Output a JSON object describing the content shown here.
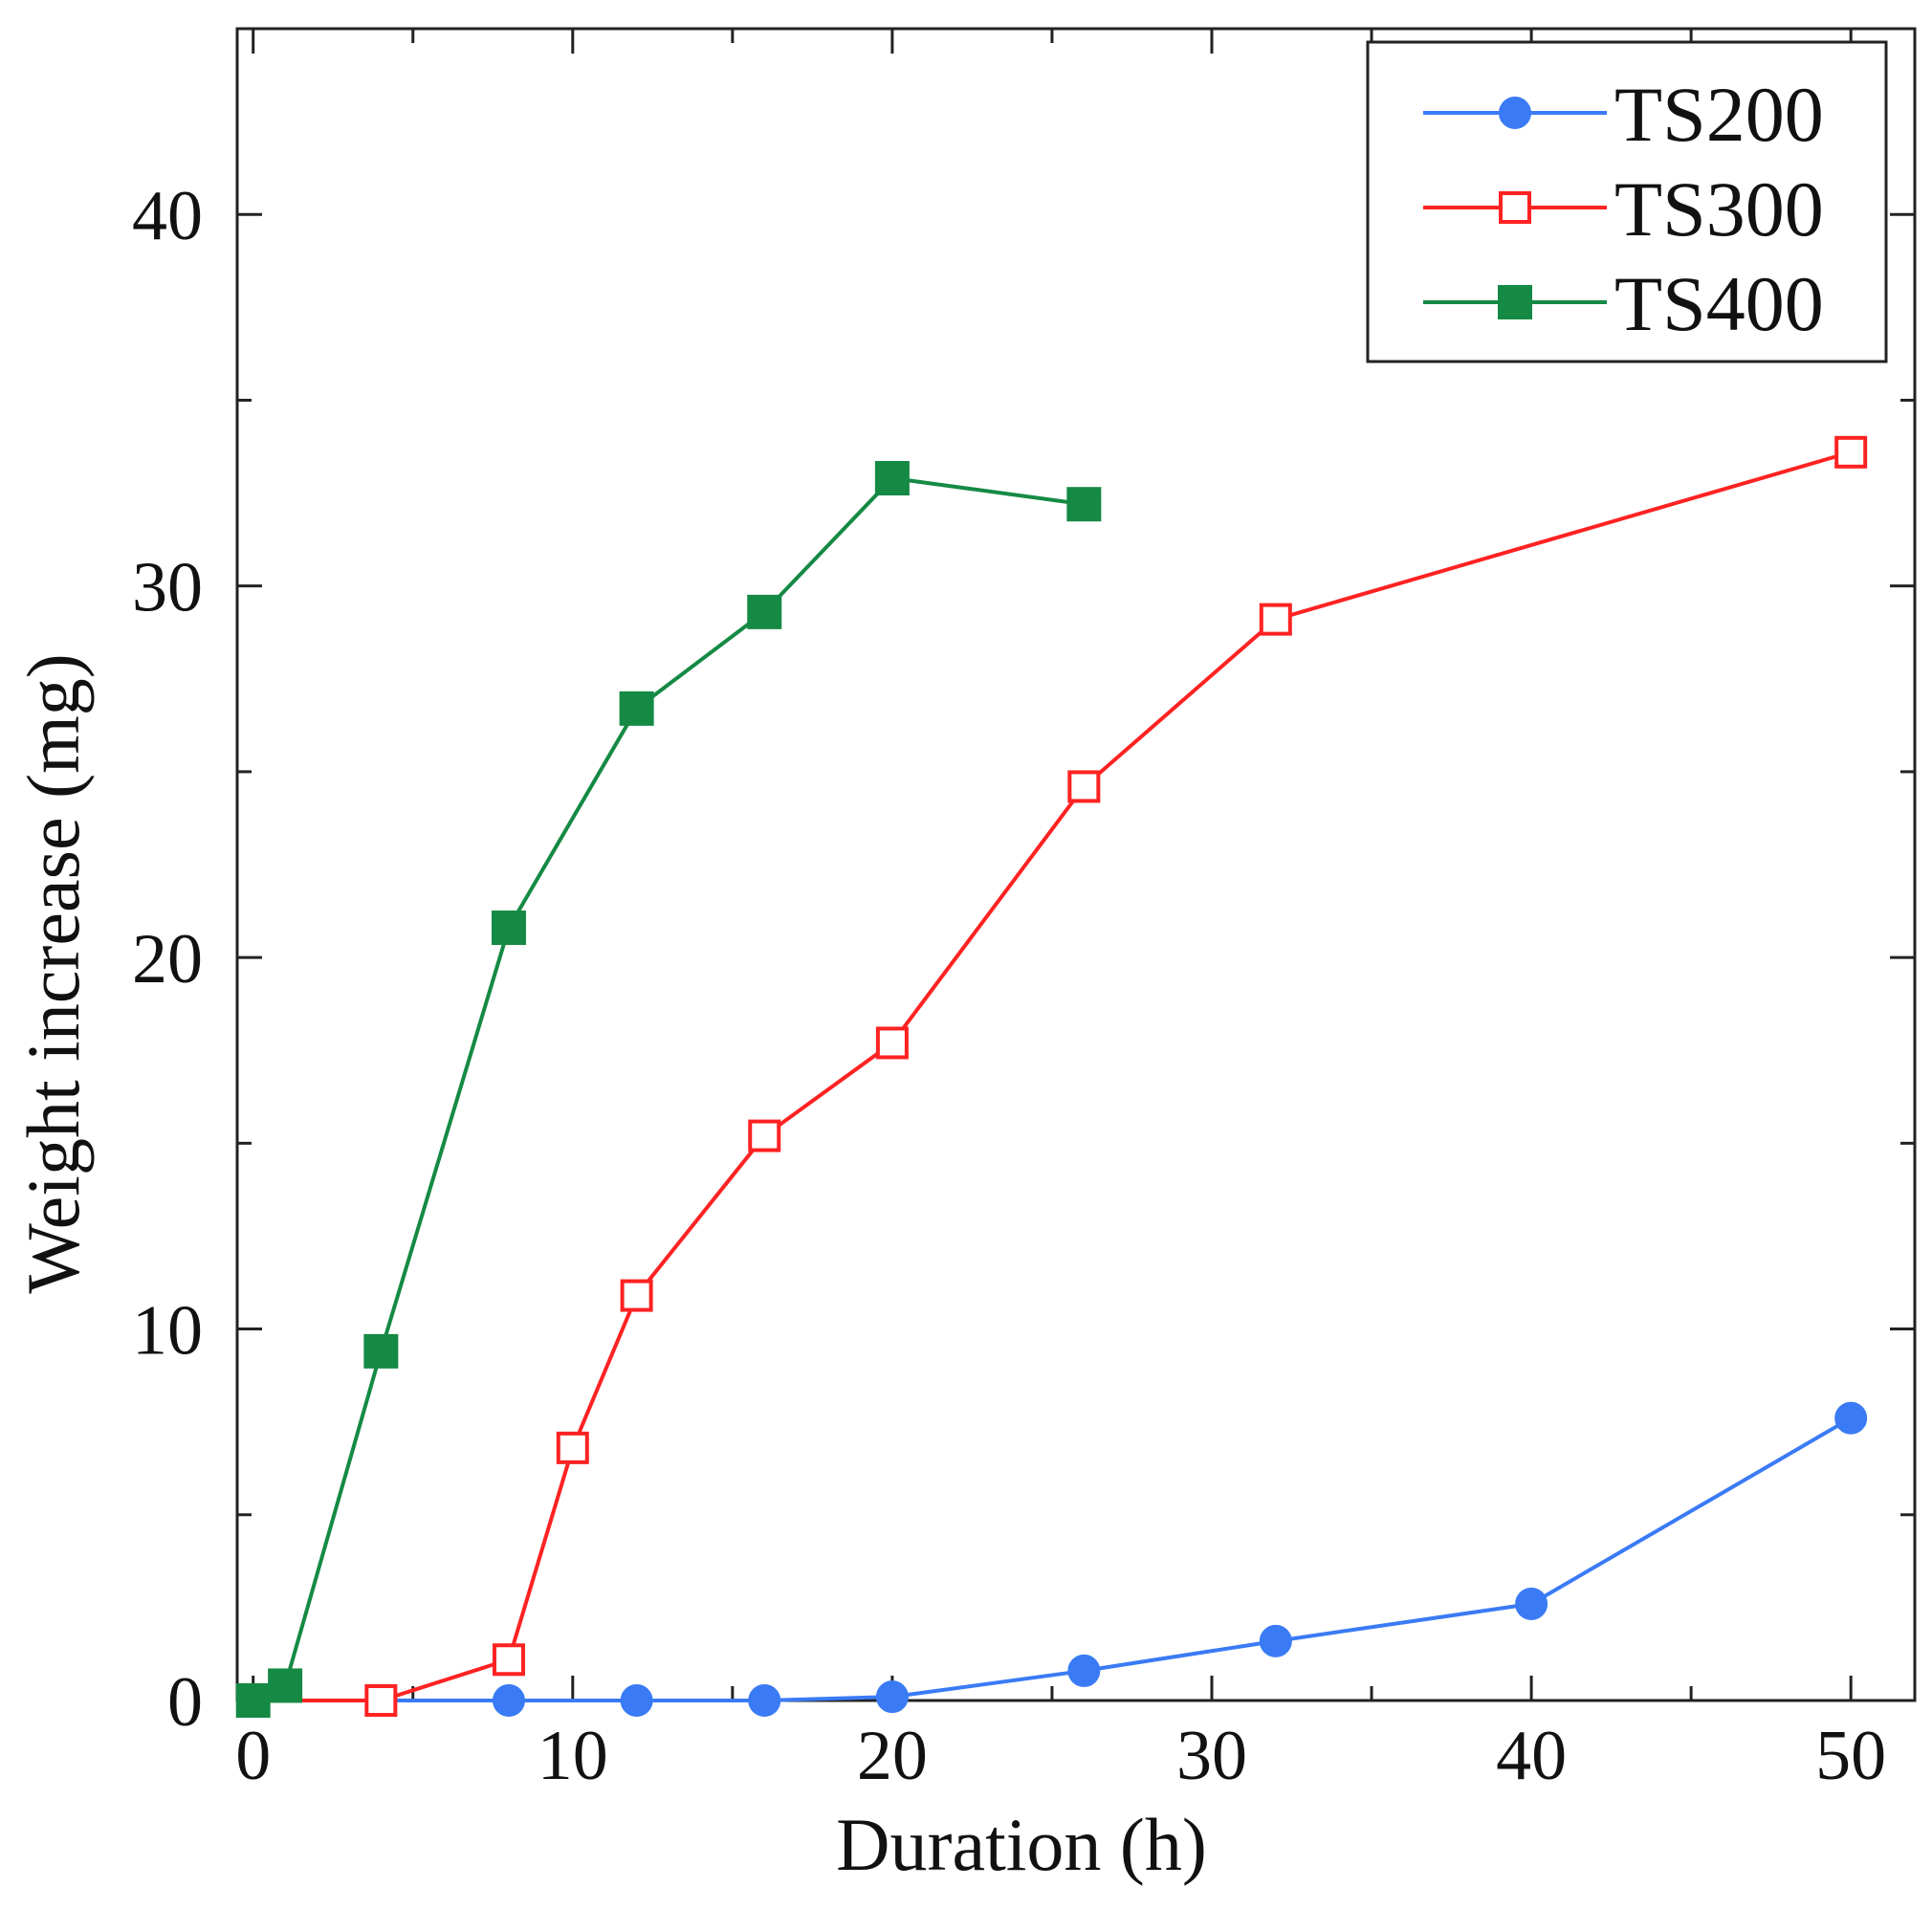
{
  "chart_data": {
    "type": "line",
    "title": "",
    "xlabel": "Duration (h)",
    "ylabel": "Weight increase (mg)",
    "xlim": [
      -0.5,
      52
    ],
    "ylim": [
      0,
      45
    ],
    "xticks": [
      0,
      10,
      20,
      30,
      40,
      50
    ],
    "xticks_minor": [
      5,
      15,
      25,
      35,
      45
    ],
    "yticks": [
      0,
      10,
      20,
      30,
      40
    ],
    "yticks_minor": [
      5,
      15,
      25,
      35
    ],
    "grid": false,
    "legend_position": "top-right",
    "series": [
      {
        "name": "TS200",
        "color": "#3a7bf5",
        "marker": "filled-circle",
        "x": [
          4,
          8,
          12,
          16,
          20,
          26,
          32,
          40,
          50
        ],
        "y": [
          0,
          0,
          0,
          0,
          0.1,
          0.8,
          1.6,
          2.6,
          7.6
        ]
      },
      {
        "name": "TS300",
        "color": "#ff2222",
        "marker": "open-square",
        "x": [
          0,
          4,
          8,
          10,
          12,
          16,
          20,
          26,
          32,
          50
        ],
        "y": [
          0,
          0,
          1.1,
          6.8,
          10.9,
          15.2,
          17.7,
          24.6,
          29.1,
          33.6
        ]
      },
      {
        "name": "TS400",
        "color": "#158a44",
        "marker": "filled-square",
        "x": [
          0,
          1,
          4,
          8,
          12,
          16,
          20,
          26
        ],
        "y": [
          0,
          0.4,
          9.4,
          20.8,
          26.7,
          29.3,
          32.9,
          32.2
        ]
      }
    ]
  }
}
